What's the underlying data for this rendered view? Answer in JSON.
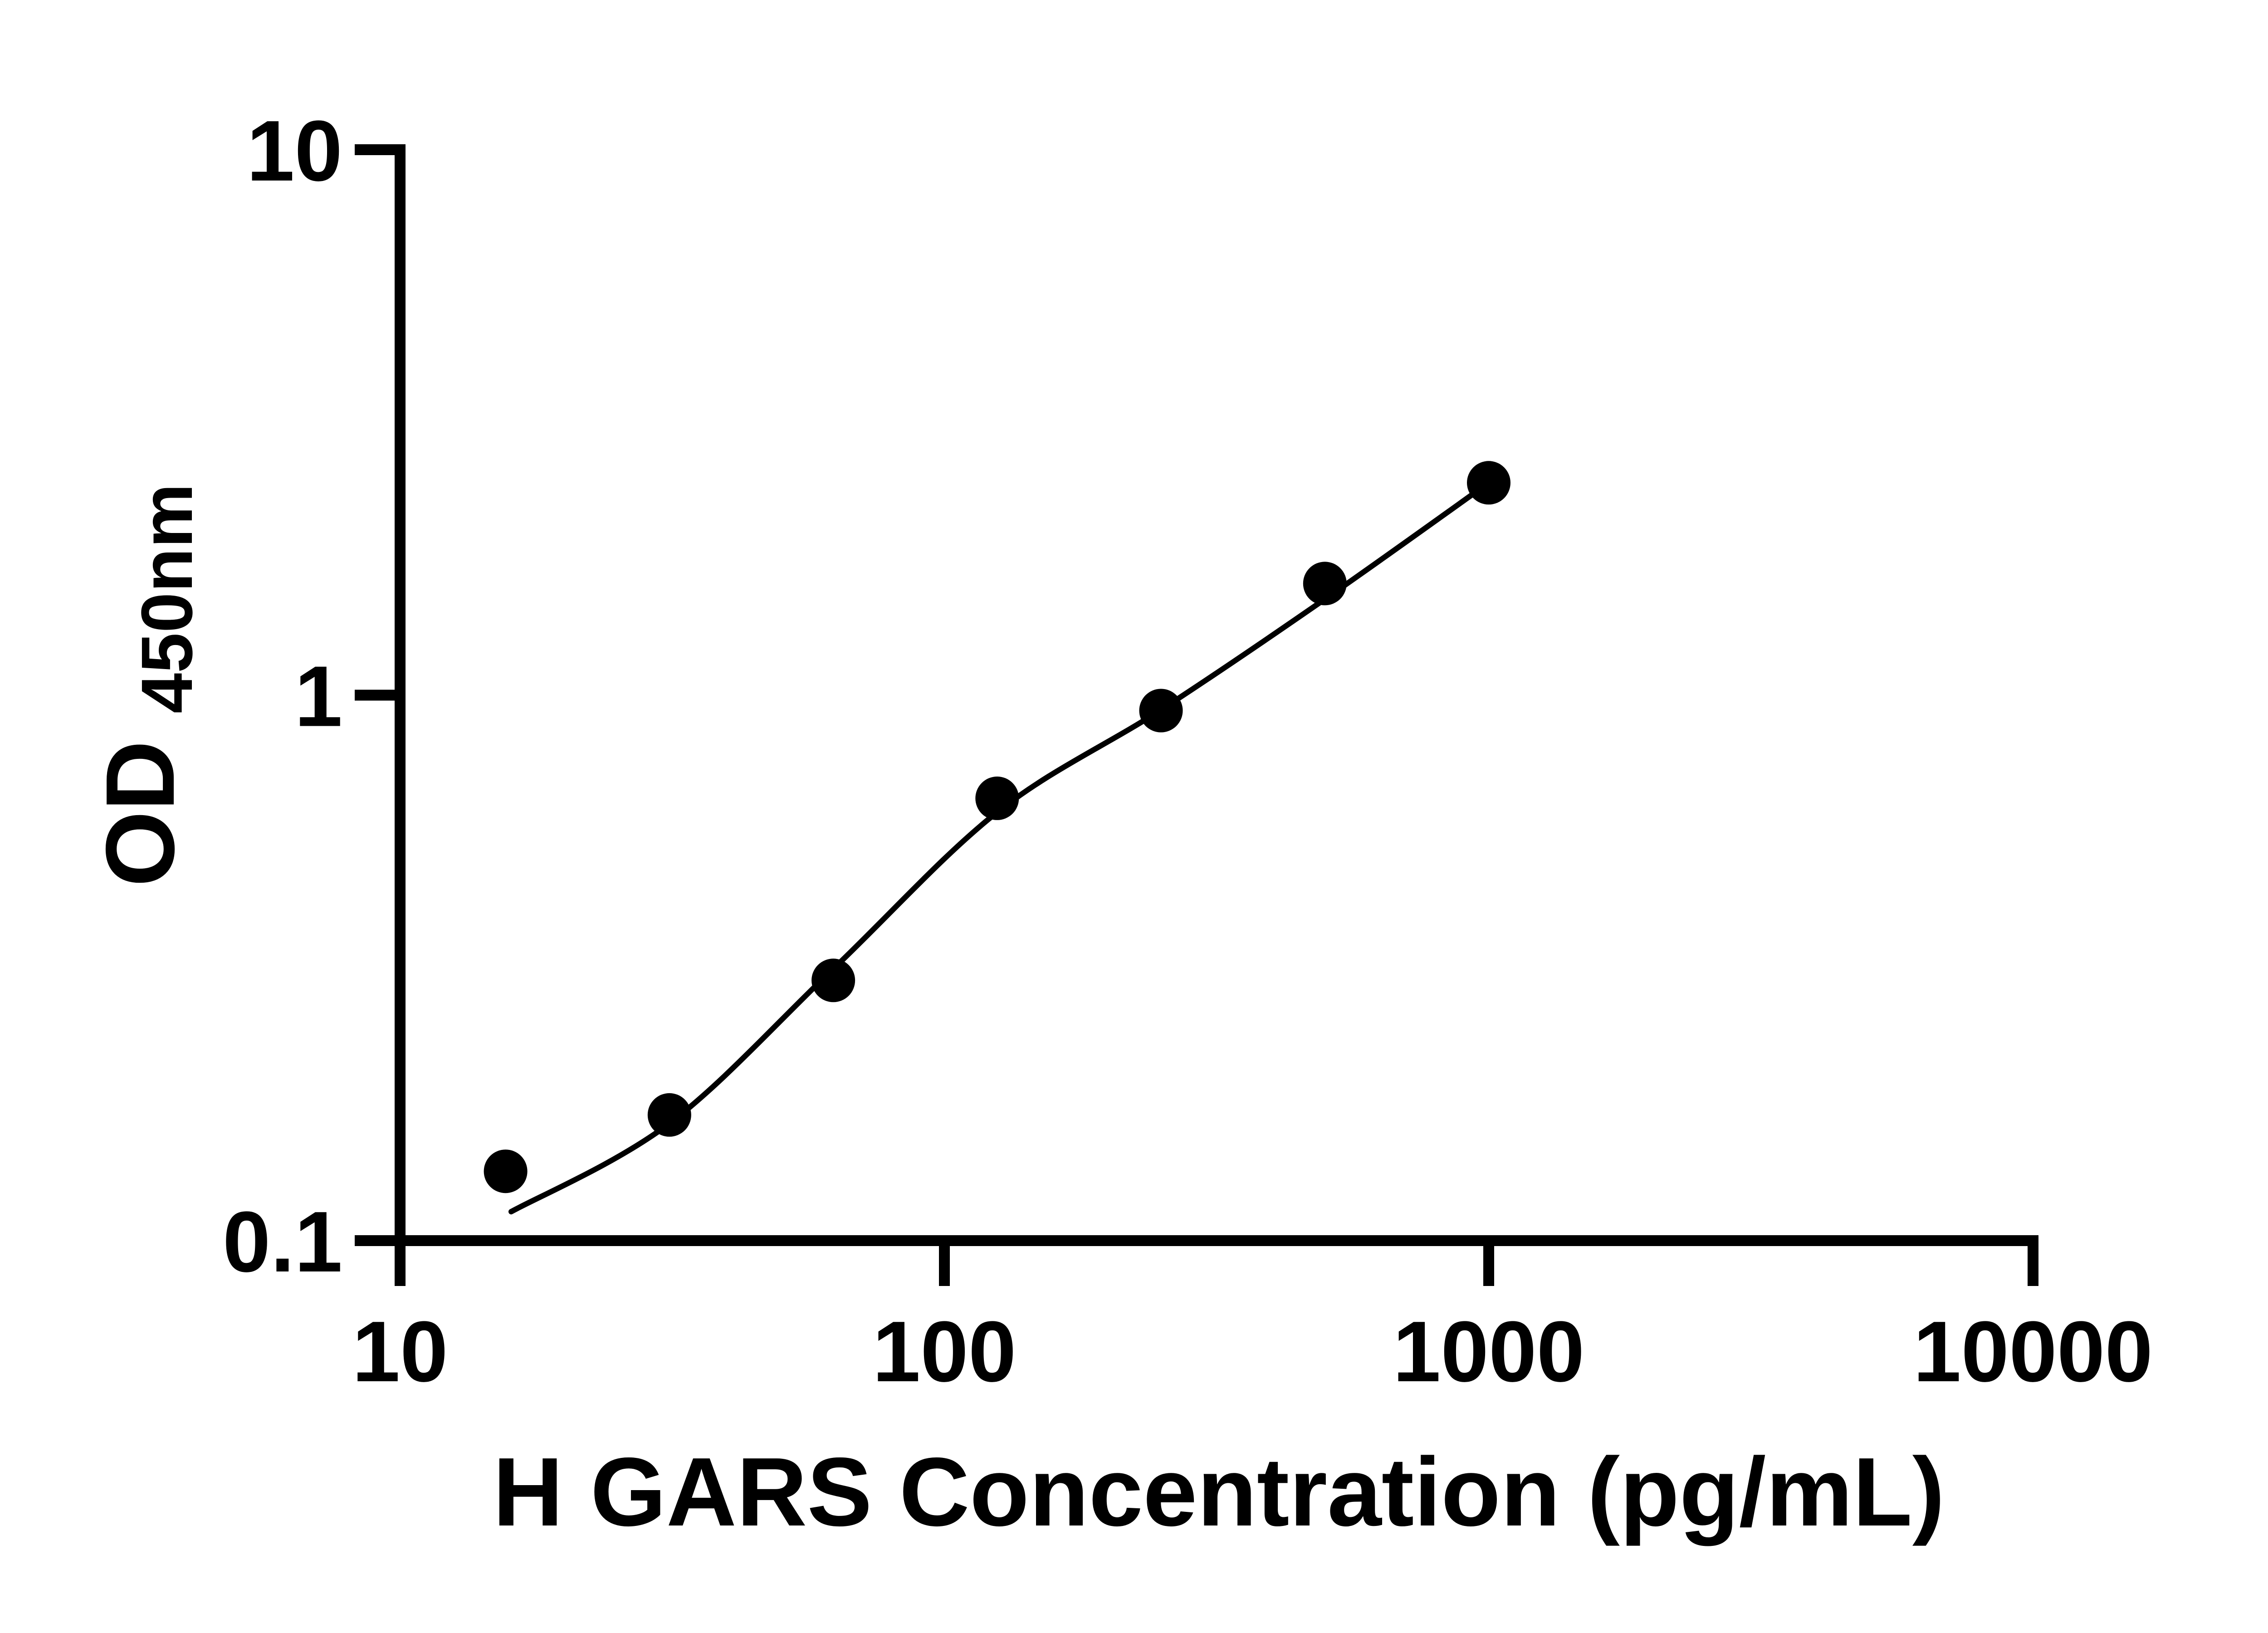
{
  "chart_data": {
    "type": "scatter",
    "title": "",
    "xlabel": "H GARS Concentration (pg/mL)",
    "ylabel_main": "OD",
    "ylabel_sub": "450nm",
    "x_scale": "log",
    "y_scale": "log",
    "xlim": [
      10,
      10000
    ],
    "ylim": [
      0.1,
      10
    ],
    "grid": false,
    "legend_position": "none",
    "background_color": "#ffffff",
    "axis_color": "#000000",
    "marker_color": "#000000",
    "fit_line_color": "#000000",
    "x_ticks": [
      {
        "value": 10,
        "label": "10"
      },
      {
        "value": 100,
        "label": "100"
      },
      {
        "value": 1000,
        "label": "1000"
      },
      {
        "value": 10000,
        "label": "10000"
      }
    ],
    "y_ticks": [
      {
        "value": 0.1,
        "label": "0.1"
      },
      {
        "value": 1,
        "label": "1"
      },
      {
        "value": 10,
        "label": "10"
      }
    ],
    "series": [
      {
        "name": "standard-curve-points",
        "x": [
          15.625,
          31.25,
          62.5,
          125,
          250,
          500,
          1000
        ],
        "y": [
          0.134,
          0.17,
          0.3,
          0.647,
          0.937,
          1.602,
          2.451
        ]
      }
    ],
    "fit_line": {
      "x": [
        16.0,
        31.25,
        62.5,
        125,
        250,
        500,
        1000
      ],
      "y": [
        0.113,
        0.164,
        0.315,
        0.61,
        0.94,
        1.5,
        2.451
      ]
    }
  }
}
